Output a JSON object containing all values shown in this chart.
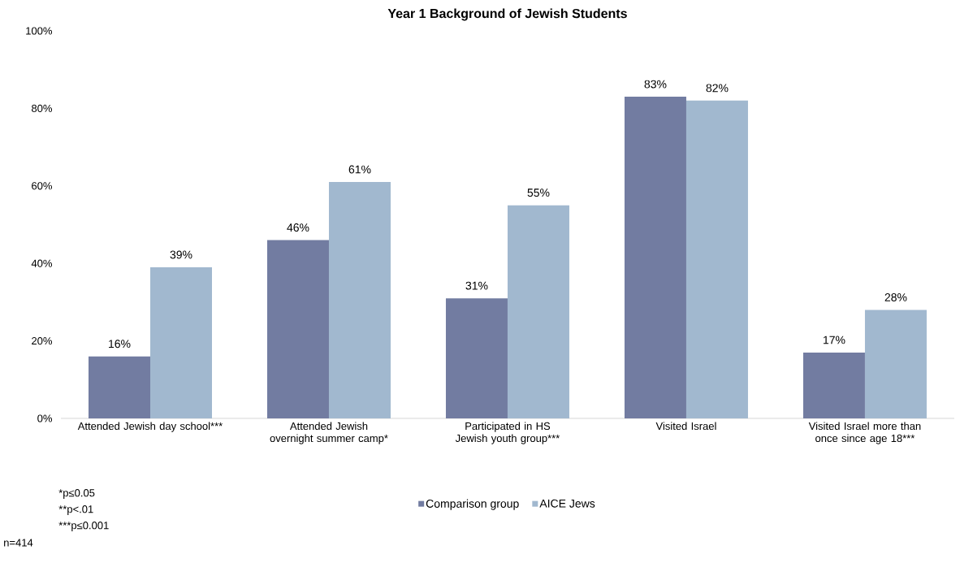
{
  "chart_data": {
    "type": "bar",
    "title": "Year 1 Background of Jewish Students",
    "categories": [
      "Attended Jewish day school***",
      "Attended Jewish overnight summer camp*",
      "Participated in HS Jewish youth group***",
      "Visited Israel",
      "Visited Israel more than once since age 18***"
    ],
    "series": [
      {
        "name": "Comparison group",
        "color": "#727ca1",
        "values": [
          16,
          46,
          31,
          83,
          17
        ],
        "value_labels": [
          "16%",
          "46%",
          "31%",
          "83%",
          "17%"
        ]
      },
      {
        "name": "AICE Jews",
        "color": "#a1b8cf",
        "values": [
          39,
          61,
          55,
          82,
          28
        ],
        "value_labels": [
          "39%",
          "61%",
          "55%",
          "82%",
          "28%"
        ]
      }
    ],
    "ylim": [
      0,
      100
    ],
    "yticks": [
      {
        "value": 0,
        "label": "0%"
      },
      {
        "value": 20,
        "label": "20%"
      },
      {
        "value": 40,
        "label": "40%"
      },
      {
        "value": 60,
        "label": "60%"
      },
      {
        "value": 80,
        "label": "80%"
      },
      {
        "value": 100,
        "label": "100%"
      }
    ],
    "legend": "bottom",
    "annotations": [
      "*p≤0.05",
      "**p<.01",
      "***p≤0.001",
      "n=414"
    ]
  }
}
